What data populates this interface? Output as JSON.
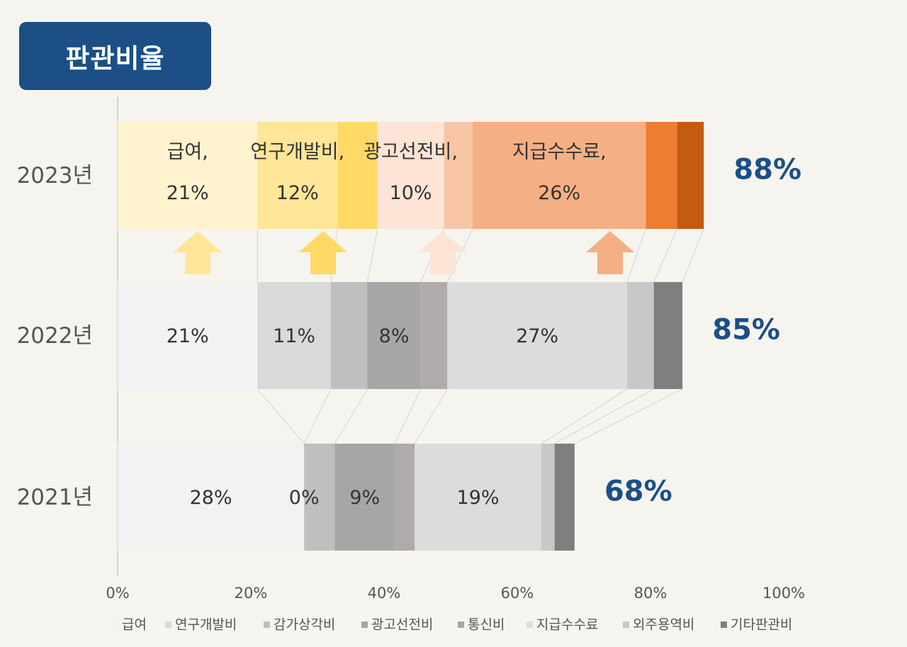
{
  "title": "판관비율",
  "chart_data": {
    "type": "bar",
    "orientation": "horizontal",
    "stacked": true,
    "categories": [
      "2023년",
      "2022년",
      "2021년"
    ],
    "xlim": [
      0,
      100
    ],
    "x_ticks": [
      "0%",
      "20%",
      "40%",
      "60%",
      "80%",
      "100%"
    ],
    "totals": [
      "88%",
      "85%",
      "68%"
    ],
    "legend": {
      "position": "bottom",
      "items": [
        "급여",
        "연구개발비",
        "감가상각비",
        "광고선전비",
        "통신비",
        "지급수수료",
        "외주용역비",
        "기타판관비"
      ]
    },
    "series": [
      {
        "name": "급여",
        "values": [
          21,
          21,
          28
        ],
        "labels": [
          "급여,\n21%",
          "21%",
          "28%"
        ]
      },
      {
        "name": "연구개발비",
        "values": [
          12,
          11,
          0
        ],
        "labels": [
          "연구개발비,\n12%",
          "11%",
          "0%"
        ]
      },
      {
        "name": "감가상각비",
        "values": [
          6,
          5.5,
          4.6
        ],
        "labels": [
          "",
          "",
          ""
        ]
      },
      {
        "name": "광고선전비",
        "values": [
          10,
          8,
          9
        ],
        "labels": [
          "광고선전비,\n10%",
          "8%",
          "9%"
        ]
      },
      {
        "name": "통신비",
        "values": [
          4.3,
          4,
          3
        ],
        "labels": [
          "",
          "",
          ""
        ]
      },
      {
        "name": "지급수수료",
        "values": [
          26,
          27,
          19
        ],
        "labels": [
          "지급수수료,\n26%",
          "27%",
          "19%"
        ]
      },
      {
        "name": "외주용역비",
        "values": [
          4.7,
          4,
          2
        ],
        "labels": [
          "",
          "",
          ""
        ]
      },
      {
        "name": "기타판관비",
        "values": [
          4,
          4.3,
          3
        ],
        "labels": [
          "",
          "",
          ""
        ]
      }
    ],
    "colors": {
      "2023": [
        "#fff3cf",
        "#ffe698",
        "#ffd966",
        "#fde4d6",
        "#f8c6a6",
        "#f4b084",
        "#ed7d31",
        "#c55a11"
      ],
      "2022": [
        "#f2f2f2",
        "#d9d9d9",
        "#bfbfbf",
        "#a6a6a6",
        "#afabab",
        "#dcdcdc",
        "#c8c8c8",
        "#7f7f7f"
      ],
      "2021": [
        "#f2f2f2",
        "#d9d9d9",
        "#bfbfbf",
        "#a6a6a6",
        "#afabab",
        "#dcdcdc",
        "#c8c8c8",
        "#7f7f7f"
      ],
      "legend": [
        "#f2f2f2",
        "#d9d9d9",
        "#bfbfbf",
        "#a6a6a6",
        "#a6a6a6",
        "#dcdcdc",
        "#c8c8c8",
        "#7f7f7f"
      ],
      "arrows": [
        "#ffe698",
        "#ffd966",
        "#fde4d6",
        "#f4b084"
      ],
      "total_text": "#1b4f86"
    },
    "arrows_on_series": [
      "급여",
      "연구개발비",
      "광고선전비",
      "지급수수료"
    ]
  }
}
